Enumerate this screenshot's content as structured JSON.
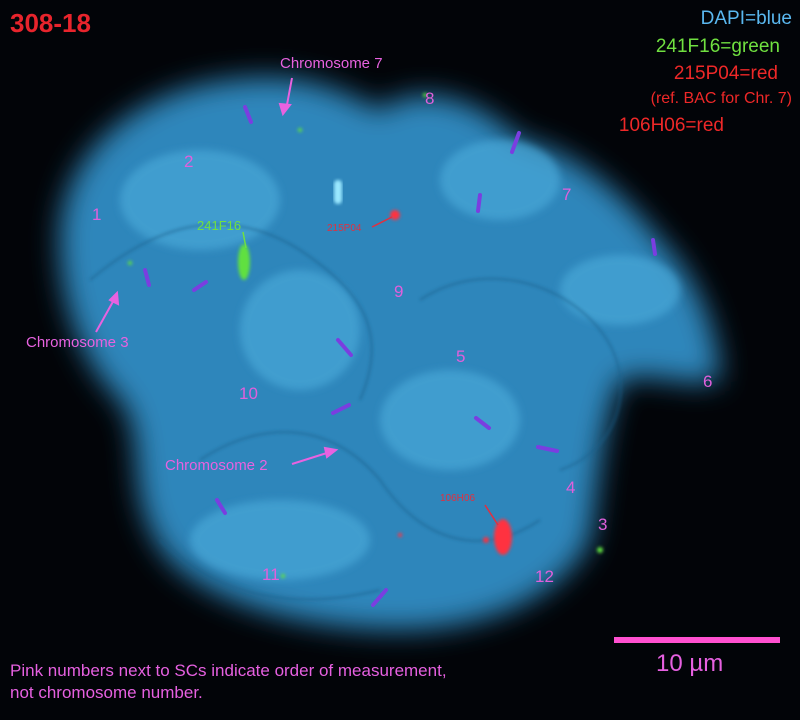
{
  "title": "308-18",
  "legend": [
    {
      "text": "DAPI=blue",
      "color": "#5ab8f0"
    },
    {
      "text": "241F16=green",
      "color": "#70e040"
    },
    {
      "text": "215P04=red",
      "color": "#ee2828"
    },
    {
      "text": "(ref. BAC for Chr. 7)",
      "color": "#ee2828"
    },
    {
      "text": "106H06=red",
      "color": "#ee2828"
    }
  ],
  "chromosome_labels": [
    "Chromosome 7",
    "Chromosome 3",
    "Chromosome 2"
  ],
  "probe_labels": {
    "green": "241F16",
    "red_1": "215P04",
    "red_2": "106H06"
  },
  "sc_numbers": [
    "1",
    "2",
    "3",
    "4",
    "5",
    "6",
    "7",
    "8",
    "9",
    "10",
    "11",
    "12"
  ],
  "scale_bar": {
    "label": "10 µm",
    "color": "#ff50d0"
  },
  "footnote": [
    "Pink numbers next to SCs indicate order of measurement,",
    "not chromosome number."
  ],
  "colors": {
    "dapi": "#3a9ad0",
    "annotation": "#e660e0",
    "sc_marker": "#7a3ee0",
    "probe_red": "#ff3040",
    "probe_green": "#60e040"
  }
}
